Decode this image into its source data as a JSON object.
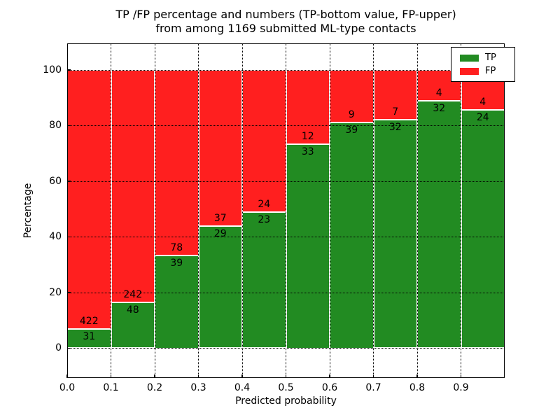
{
  "title": {
    "line1": "TP /FP percentage and numbers (TP-bottom value, FP-upper)",
    "line2": "from among 1169 submitted ML-type contacts"
  },
  "x_axis": {
    "label": "Predicted probability",
    "tick_labels": [
      "0.0",
      "0.1",
      "0.2",
      "0.3",
      "0.4",
      "0.5",
      "0.6",
      "0.7",
      "0.8",
      "0.9"
    ]
  },
  "y_axis": {
    "label": "Percentage",
    "tick_labels": [
      "0",
      "20",
      "40",
      "60",
      "80",
      "100"
    ],
    "tick_values": [
      0,
      20,
      40,
      60,
      80,
      100
    ]
  },
  "legend": {
    "items": [
      {
        "label": "TP",
        "color": "#228B22"
      },
      {
        "label": "FP",
        "color": "#ff1f1f"
      }
    ]
  },
  "chart_data": {
    "type": "bar",
    "stacked": true,
    "normalized": "each bar scaled to 100%",
    "title": "TP /FP percentage and numbers (TP-bottom value, FP-upper) from among 1169 submitted ML-type contacts",
    "xlabel": "Predicted probability",
    "ylabel": "Percentage",
    "categories": [
      "0.0",
      "0.1",
      "0.2",
      "0.3",
      "0.4",
      "0.5",
      "0.6",
      "0.7",
      "0.8",
      "0.9"
    ],
    "series": [
      {
        "name": "TP",
        "color": "#228B22",
        "values": [
          31,
          48,
          39,
          29,
          23,
          33,
          39,
          32,
          32,
          24
        ]
      },
      {
        "name": "FP",
        "color": "#ff1f1f",
        "values": [
          422,
          242,
          78,
          37,
          24,
          12,
          9,
          7,
          4,
          4
        ]
      }
    ],
    "tp_percent": [
      6.8,
      16.6,
      33.3,
      43.9,
      48.9,
      73.3,
      81.3,
      82.1,
      88.9,
      85.7
    ],
    "total_contacts": 1169,
    "ylim": [
      0,
      100
    ],
    "grid": true,
    "grid_style": "dotted",
    "legend_position": "upper right",
    "bar_edge_color": "#ffffff"
  }
}
